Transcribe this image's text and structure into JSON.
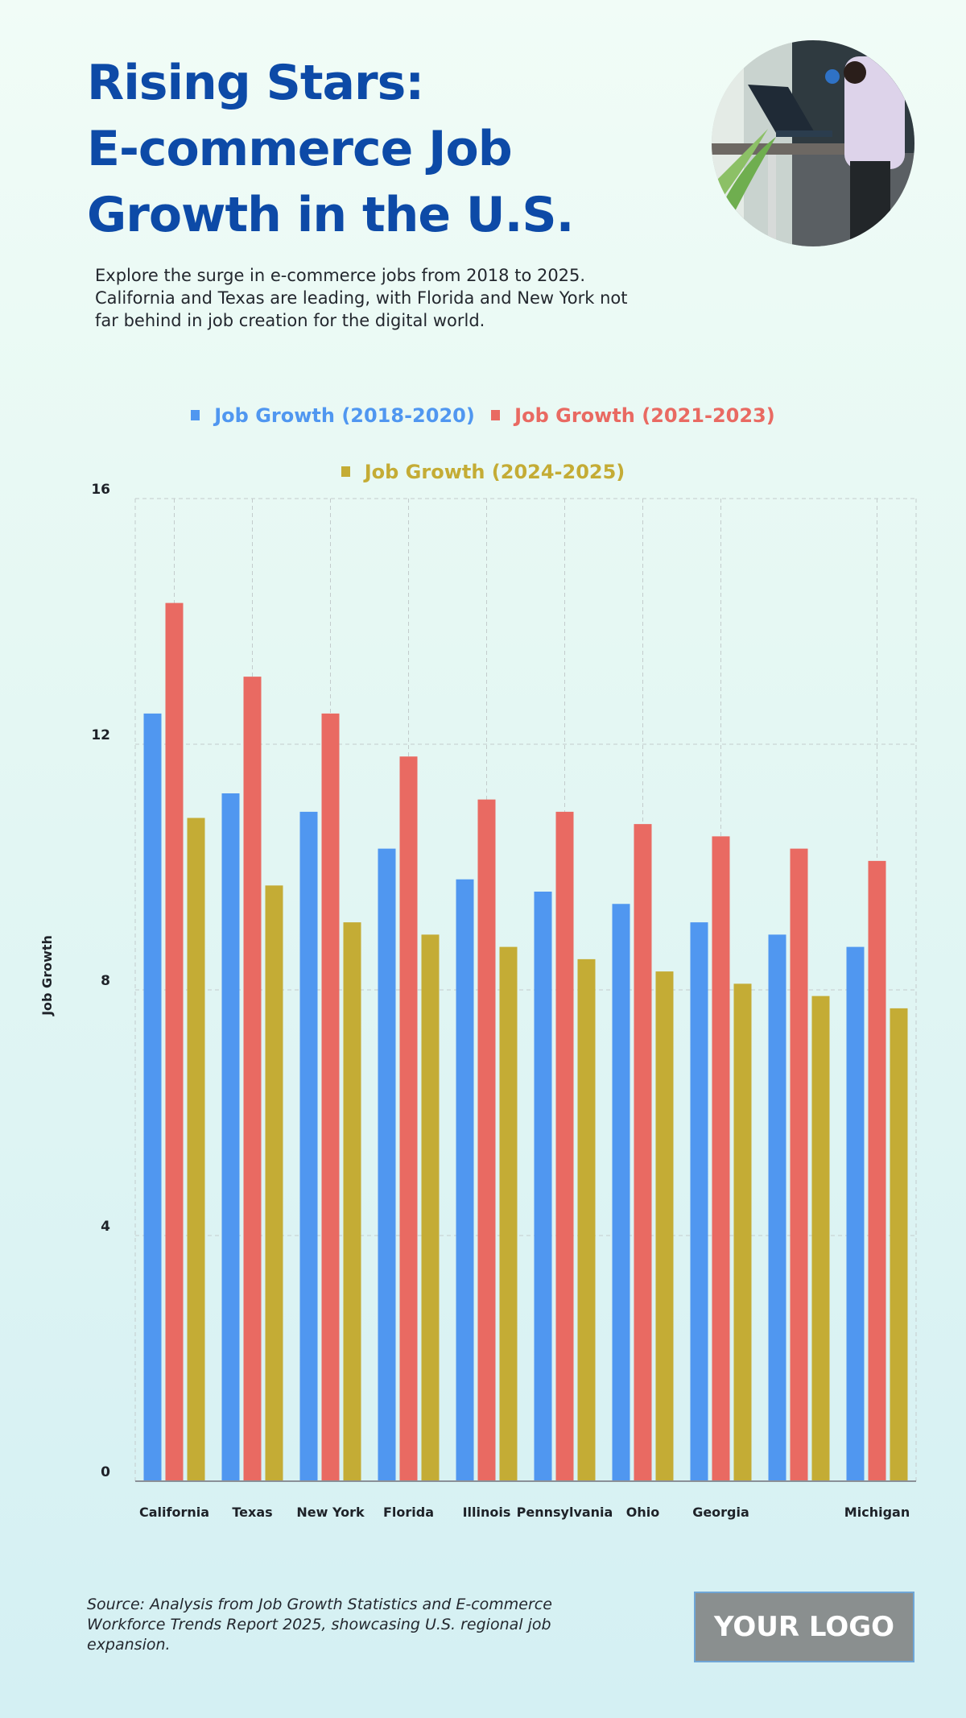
{
  "header": {
    "title_lines": [
      "Rising Stars:",
      "E-commerce Job",
      "Growth in the U.S."
    ],
    "subtitle_lines": [
      "Explore the surge in e-commerce jobs from 2018 to 2025.",
      "California and Texas are leading, with Florida and New York not",
      "far behind in job creation for the digital world."
    ],
    "photo_description": "person working at standing desk with laptop"
  },
  "chart_data": {
    "type": "bar",
    "title": "Rising Stars: E-commerce Job Growth in the U.S.",
    "xlabel": "",
    "ylabel": "Job Growth",
    "ylim": [
      0,
      16
    ],
    "yticks": [
      0,
      4,
      8,
      12,
      16
    ],
    "grid": true,
    "legend_position": "top-center",
    "categories": [
      "California",
      "Texas",
      "New York",
      "Florida",
      "Illinois",
      "Pennsylvania",
      "Ohio",
      "Georgia",
      "",
      "Michigan"
    ],
    "series": [
      {
        "name": "Job Growth (2018-2020)",
        "color": "#5097f0",
        "values": [
          12.5,
          11.2,
          10.9,
          10.3,
          9.8,
          9.6,
          9.4,
          9.1,
          8.9,
          8.7
        ]
      },
      {
        "name": "Job Growth (2021-2023)",
        "color": "#e96a62",
        "values": [
          14.3,
          13.1,
          12.5,
          11.8,
          11.1,
          10.9,
          10.7,
          10.5,
          10.3,
          10.1
        ]
      },
      {
        "name": "Job Growth (2024-2025)",
        "color": "#c4ac35",
        "values": [
          10.8,
          9.7,
          9.1,
          8.9,
          8.7,
          8.5,
          8.3,
          8.1,
          7.9,
          7.7
        ]
      }
    ]
  },
  "footer": {
    "source_lines": [
      "Source: Analysis from Job Growth Statistics and E-commerce",
      "Workforce Trends Report 2025, showcasing U.S. regional job",
      "expansion."
    ],
    "logo_text": "YOUR LOGO"
  }
}
